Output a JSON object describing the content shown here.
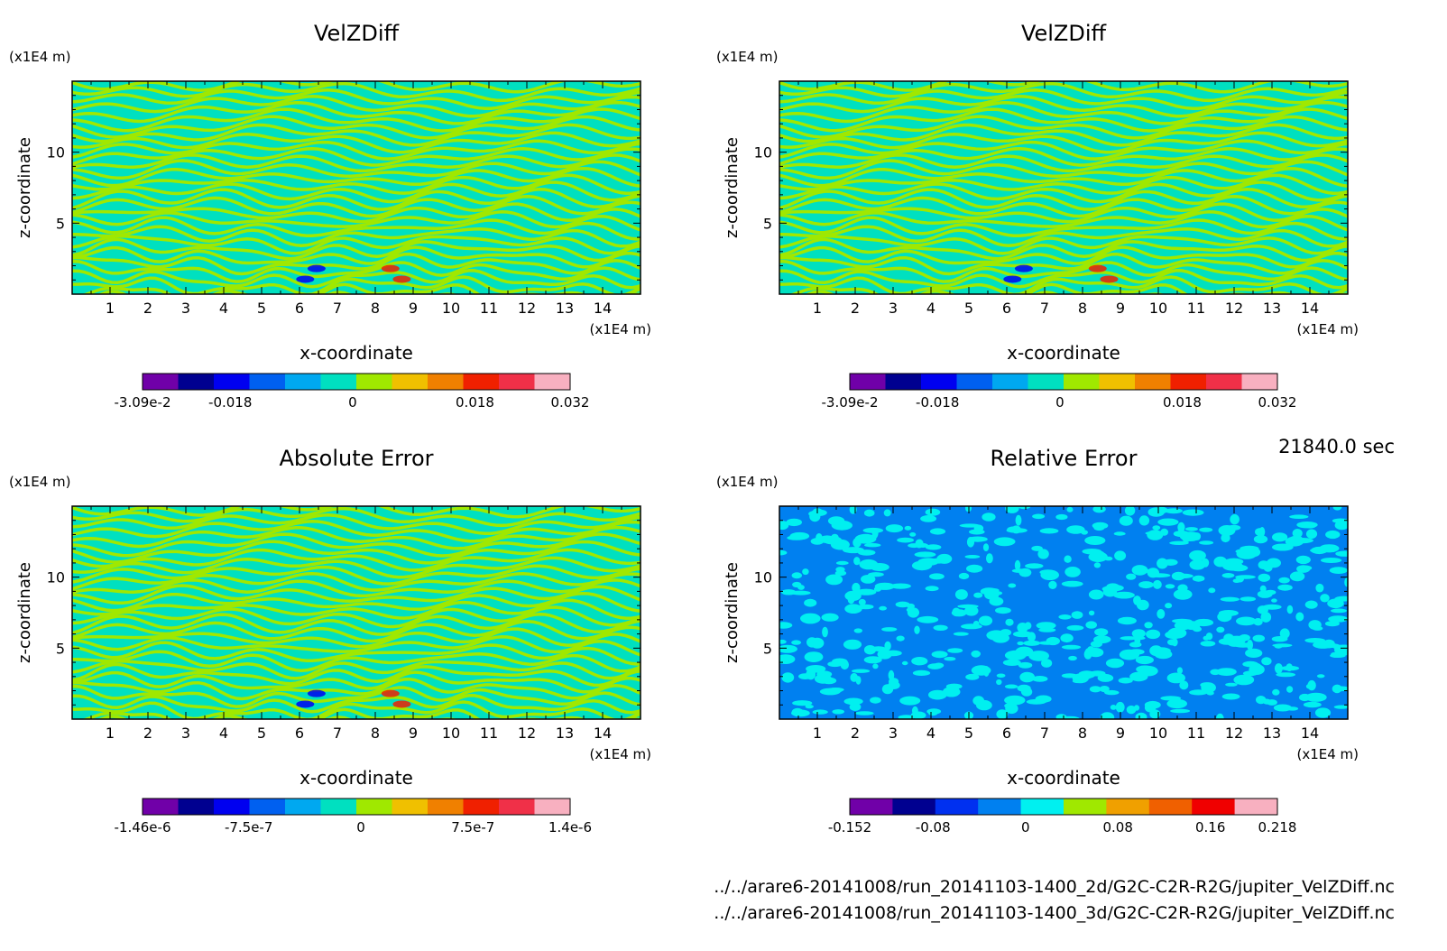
{
  "time_label": "21840.0 sec",
  "source_files": [
    "../../arare6-20141008/run_20141103-1400_2d/G2C-C2R-R2G/jupiter_VelZDiff.nc",
    "../../arare6-20141008/run_20141103-1400_3d/G2C-C2R-R2G/jupiter_VelZDiff.nc"
  ],
  "chart_data": [
    {
      "type": "heatmap",
      "title": "VelZDiff",
      "xlabel": "x-coordinate",
      "ylabel": "z-coordinate",
      "x_unit": "(x1E4 m)",
      "y_unit": "(x1E4 m)",
      "xlim": [
        0,
        15
      ],
      "ylim": [
        0,
        15
      ],
      "x_ticks": [
        "1",
        "2",
        "3",
        "4",
        "5",
        "6",
        "7",
        "8",
        "9",
        "10",
        "11",
        "12",
        "13",
        "14"
      ],
      "y_ticks": [
        "5",
        "10"
      ],
      "pattern": "waves",
      "colorbar": {
        "colors": [
          "#7000a8",
          "#000090",
          "#0000f0",
          "#0060f0",
          "#00a8f0",
          "#00e0c0",
          "#a0e800",
          "#f0c000",
          "#f08000",
          "#f02000",
          "#f03048",
          "#f8b0c0"
        ],
        "ticks": [
          "-3.09e-2",
          "-0.018",
          "0",
          "0.018",
          "0.032"
        ]
      }
    },
    {
      "type": "heatmap",
      "title": "VelZDiff",
      "xlabel": "x-coordinate",
      "ylabel": "z-coordinate",
      "x_unit": "(x1E4 m)",
      "y_unit": "(x1E4 m)",
      "xlim": [
        0,
        15
      ],
      "ylim": [
        0,
        15
      ],
      "x_ticks": [
        "1",
        "2",
        "3",
        "4",
        "5",
        "6",
        "7",
        "8",
        "9",
        "10",
        "11",
        "12",
        "13",
        "14"
      ],
      "y_ticks": [
        "5",
        "10"
      ],
      "pattern": "waves",
      "colorbar": {
        "colors": [
          "#7000a8",
          "#000090",
          "#0000f0",
          "#0060f0",
          "#00a8f0",
          "#00e0c0",
          "#a0e800",
          "#f0c000",
          "#f08000",
          "#f02000",
          "#f03048",
          "#f8b0c0"
        ],
        "ticks": [
          "-3.09e-2",
          "-0.018",
          "0",
          "0.018",
          "0.032"
        ]
      }
    },
    {
      "type": "heatmap",
      "title": "Absolute Error",
      "xlabel": "x-coordinate",
      "ylabel": "z-coordinate",
      "x_unit": "(x1E4 m)",
      "y_unit": "(x1E4 m)",
      "xlim": [
        0,
        15
      ],
      "ylim": [
        0,
        15
      ],
      "x_ticks": [
        "1",
        "2",
        "3",
        "4",
        "5",
        "6",
        "7",
        "8",
        "9",
        "10",
        "11",
        "12",
        "13",
        "14"
      ],
      "y_ticks": [
        "5",
        "10"
      ],
      "pattern": "waves",
      "colorbar": {
        "colors": [
          "#7000a8",
          "#000090",
          "#0000f0",
          "#0060f0",
          "#00a8f0",
          "#00e0c0",
          "#a0e800",
          "#f0c000",
          "#f08000",
          "#f02000",
          "#f03048",
          "#f8b0c0"
        ],
        "ticks": [
          "-1.46e-6",
          "-7.5e-7",
          "0",
          "7.5e-7",
          "1.4e-6"
        ]
      }
    },
    {
      "type": "heatmap",
      "title": "Relative Error",
      "xlabel": "x-coordinate",
      "ylabel": "z-coordinate",
      "x_unit": "(x1E4 m)",
      "y_unit": "(x1E4 m)",
      "xlim": [
        0,
        15
      ],
      "ylim": [
        0,
        15
      ],
      "x_ticks": [
        "1",
        "2",
        "3",
        "4",
        "5",
        "6",
        "7",
        "8",
        "9",
        "10",
        "11",
        "12",
        "13",
        "14"
      ],
      "y_ticks": [
        "5",
        "10"
      ],
      "pattern": "noise",
      "colorbar": {
        "colors": [
          "#7000a8",
          "#000090",
          "#0030f0",
          "#0080f0",
          "#00f0f0",
          "#a0e800",
          "#f0a000",
          "#f06000",
          "#f00000",
          "#f8b0c0"
        ],
        "ticks": [
          "-0.152",
          "-0.08",
          "0",
          "0.08",
          "0.16",
          "0.218"
        ]
      }
    }
  ]
}
